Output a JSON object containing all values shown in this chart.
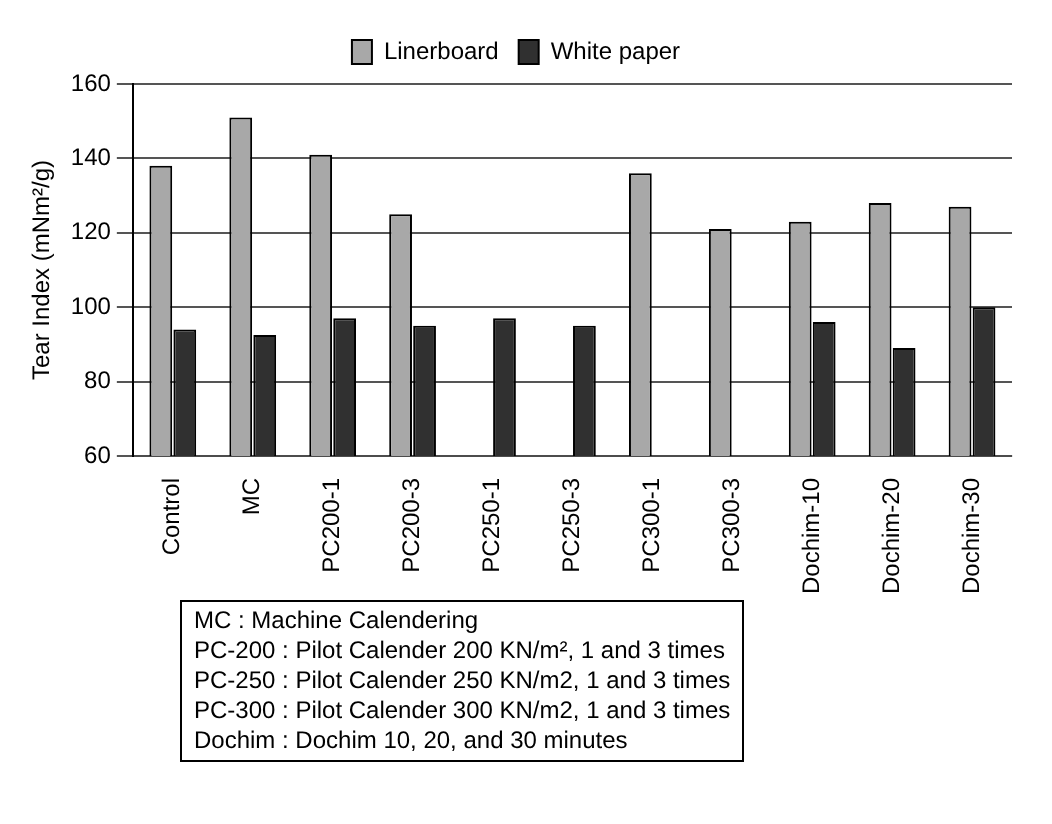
{
  "chart_data": {
    "type": "bar",
    "ylabel": "Tear Index (mNm²/g)",
    "categories": [
      "Control",
      "MC",
      "PC200-1",
      "PC200-3",
      "PC250-1",
      "PC250-3",
      "PC300-1",
      "PC300-3",
      "Dochim-10",
      "Dochim-20",
      "Dochim-30"
    ],
    "series": [
      {
        "name": "Linerboard",
        "color": "#a8a8a8",
        "values": [
          138,
          151,
          141,
          125,
          null,
          null,
          136,
          121,
          123,
          128,
          127
        ]
      },
      {
        "name": "White paper",
        "color": "#303030",
        "values": [
          94,
          92.5,
          97,
          95,
          97,
          95,
          null,
          null,
          96,
          89,
          100
        ]
      }
    ],
    "ylim": [
      60,
      160
    ],
    "yticks": [
      60,
      80,
      100,
      120,
      140,
      160
    ],
    "grid": "y",
    "legend": "top",
    "annotations": [
      "MC : Machine Calendering",
      "PC-200 : Pilot Calender 200 KN/m², 1 and 3 times",
      "PC-250 : Pilot Calender 250 KN/m2, 1 and 3 times",
      "PC-300 : Pilot Calender 300 KN/m2, 1 and 3 times",
      "Dochim : Dochim 10, 20, and 30 minutes"
    ]
  }
}
